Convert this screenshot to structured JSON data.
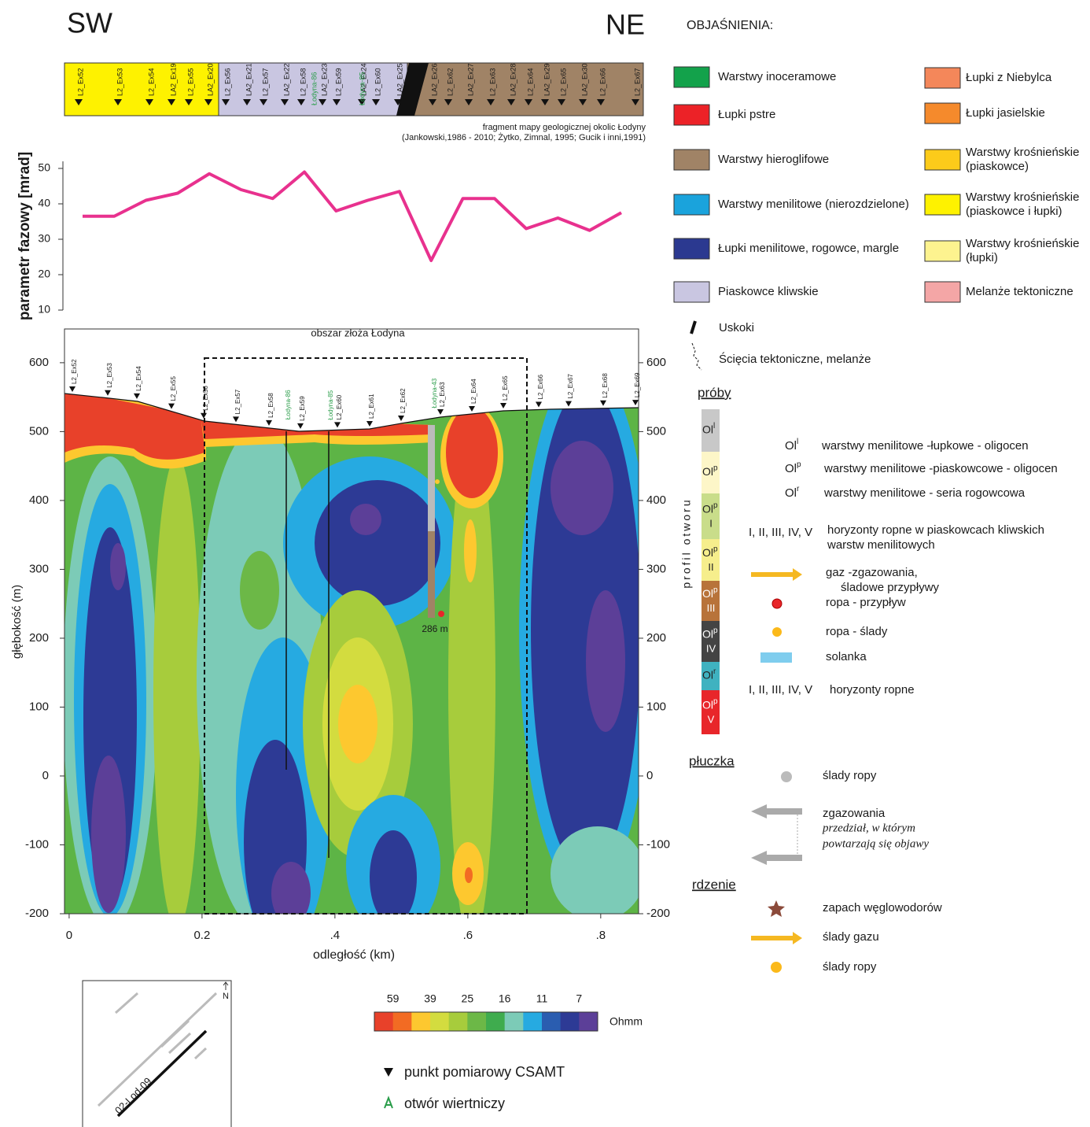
{
  "header": {
    "left": "SW",
    "right": "NE",
    "legend_title": "OBJAŚNIENIA:"
  },
  "map_strip": {
    "stations": [
      "L2_Ex52",
      "L2_Ex53",
      "L2_Ex54",
      "LA2_Ex19",
      "L2_Ex55",
      "LA2_Ex20",
      "L2_Ex56",
      "LA2_Ex21",
      "L2_Ex57",
      "LA2_Ex22",
      "L2_Ex58",
      "LA2_Ex23",
      "L2_Ex59",
      "LA2_Ex24",
      "L2_Ex60",
      "LA2_Ex25",
      "LA2_Ex26",
      "L2_Ex62",
      "LA2_Ex27",
      "L2_Ex63",
      "LA2_Ex28",
      "L2_Ex64",
      "LA2_Ex29",
      "L2_Ex65",
      "LA2_Ex30",
      "L2_Ex66",
      "L2_Ex67"
    ],
    "wells": [
      "Łodyna-86",
      "Łodyna-85"
    ],
    "caption": [
      "fragment mapy geologicznej okolic Łodyny",
      "(Jankowski,1986 - 2010; Żytko, Zimnal, 1995;  Gucik i inni,1991)"
    ]
  },
  "chart_data": [
    {
      "type": "line",
      "y_label": "parametr fazowy [mrad]",
      "categories": [
        null,
        null,
        null,
        null,
        null,
        null,
        null,
        null,
        null,
        null,
        null,
        null,
        null,
        null,
        null,
        null,
        null,
        null
      ],
      "values": [
        36.5,
        36.5,
        41,
        43,
        48.5,
        44,
        41.5,
        49,
        38,
        41,
        43.5,
        24,
        41.5,
        41.5,
        33,
        36,
        32.5,
        37.5
      ],
      "color": "#e8318e",
      "ylim": [
        10,
        52
      ],
      "yticks": [
        10,
        20,
        30,
        40,
        50
      ]
    },
    {
      "type": "contour",
      "title": "obszar złoża Łodyna",
      "x_label": "odległość (km)",
      "y_label": "głębokość (m)",
      "xlim": [
        -0.007,
        0.857
      ],
      "xticks": [
        0,
        0.2,
        {
          "value": 0.4,
          "label": ".4"
        },
        {
          "value": 0.6,
          "label": ".6"
        },
        {
          "value": 0.8,
          "label": ".8"
        }
      ],
      "ylim": [
        -200,
        649
      ],
      "yticks": [
        -200,
        -100,
        0,
        100,
        200,
        300,
        400,
        500,
        600
      ],
      "stations": [
        "L2_Ex52",
        "L2_Ex53",
        "L2_Ex54",
        "L2_Ex55",
        "L2_Ex56",
        "L2_Ex57",
        "L2_Ex58",
        "Łodyna-86",
        "L2_Ex59",
        "Łodyna-85",
        "L2_Ex60",
        "L2_Ex61",
        "L2_Ex62",
        "Łodyna-43",
        "L2_Ex63",
        "L2_Ex64",
        "L2_Ex65",
        "L2_Ex66",
        "L2_Ex67",
        "L2_Ex68",
        "L2_Ex69"
      ],
      "annotation": "286 m"
    }
  ],
  "legend": {
    "units_left": [
      {
        "label": [
          "Warstwy inoceramowe"
        ],
        "color": "#13a24b"
      },
      {
        "label": [
          "Łupki pstre"
        ],
        "color": "#ec2227"
      },
      {
        "label": [
          "Warstwy hieroglifowe"
        ],
        "color": "#a08366"
      },
      {
        "label": [
          "Warstwy menilitowe (nierozdzielone)"
        ],
        "color": "#1aa3dc"
      },
      {
        "label": [
          "Łupki menilitowe, rogowce, margle"
        ],
        "color": "#2b3990"
      },
      {
        "label": [
          "Piaskowce kliwskie"
        ],
        "color": "#c9c6e1"
      }
    ],
    "units_right": [
      {
        "label": [
          "Łupki z Niebylca"
        ],
        "color": "#f4875a"
      },
      {
        "label": [
          "Łupki jasielskie"
        ],
        "color": "#f58a2c"
      },
      {
        "label": [
          "Warstwy krośnieńskie",
          "(piaskowce)"
        ],
        "color": "#fccb1a"
      },
      {
        "label": [
          "Warstwy krośnieńskie",
          "(piaskowce i łupki)"
        ],
        "color": "#fef200"
      },
      {
        "label": [
          "Warstwy krośnieńskie",
          "(łupki)"
        ],
        "color": "#fdf38f"
      },
      {
        "label": [
          "Melanże tektoniczne"
        ],
        "color": "#f4a6a6"
      }
    ],
    "faults": "Uskoki",
    "shear": "Ścięcia tektoniczne, melanże"
  },
  "samples": {
    "title": "próby",
    "profile_label": "profil otworu",
    "column": [
      {
        "label": "Ol",
        "sup": "l",
        "roman": "",
        "color": "#c8c8c8"
      },
      {
        "label": "Ol",
        "sup": "p",
        "roman": "",
        "color": "#fdf6c8"
      },
      {
        "label": "Ol",
        "sup": "p",
        "roman": "I",
        "color": "#c9dd8a"
      },
      {
        "label": "Ol",
        "sup": "p",
        "roman": "II",
        "color": "#f6ee8c"
      },
      {
        "label": "Ol",
        "sup": "p",
        "roman": "III",
        "color": "#b8733a"
      },
      {
        "label": "Ol",
        "sup": "p",
        "roman": "IV",
        "color": "#444444"
      },
      {
        "label": "Ol",
        "sup": "r",
        "roman": "",
        "color": "#3fb2c0"
      },
      {
        "label": "Ol",
        "sup": "p",
        "roman": "V",
        "color": "#e8262a"
      }
    ],
    "keys": [
      {
        "label": "Ol",
        "sup": "l",
        "text": [
          "warstwy menilitowe -łupkowe - oligocen"
        ]
      },
      {
        "label": "Ol",
        "sup": "p",
        "text": [
          "warstwy menilitowe -piaskowcowe - oligocen"
        ]
      },
      {
        "label": "Ol",
        "sup": "r",
        "text": [
          "warstwy menilitowe - seria rogowcowa"
        ]
      }
    ],
    "horizons": {
      "label": "I, II, III, IV, V",
      "text": [
        "horyzonty ropne w piaskowcach kliwskich",
        "warstw menilitowych"
      ]
    },
    "gas": [
      "gaz -zgazowania,",
      "śladowe przypływy"
    ],
    "oil_inflow": "ropa - przypływ",
    "oil_traces": "ropa - ślady",
    "brine": "solanka",
    "horizons2": {
      "label": "I, II, III, IV, V",
      "text": "horyzonty ropne"
    }
  },
  "mud": {
    "title": "płuczka",
    "oil": "ślady ropy",
    "gas": "zgazowania",
    "interval": [
      "przedział, w którym",
      "powtarzają się objawy"
    ]
  },
  "cores": {
    "title": "rdzenie",
    "smell": "zapach węglowodorów",
    "gas": "ślady gazu",
    "oil": "ślady ropy"
  },
  "colorbar": {
    "ticks": [
      59,
      39,
      25,
      16,
      11,
      7
    ],
    "unit": "Ohmm",
    "colors": [
      "#e8412a",
      "#f26b23",
      "#fdc82f",
      "#d3dc3f",
      "#a7cc3c",
      "#6cb847",
      "#3fac4e",
      "#7ccbb7",
      "#26aae1",
      "#2a5db0",
      "#2d3a95",
      "#5c3f98"
    ]
  },
  "symbols": {
    "csamt": "punkt pomiarowy CSAMT",
    "well": "otwór wiertniczy"
  },
  "inset": {
    "profile": "02-Lod-09",
    "north": "N"
  }
}
